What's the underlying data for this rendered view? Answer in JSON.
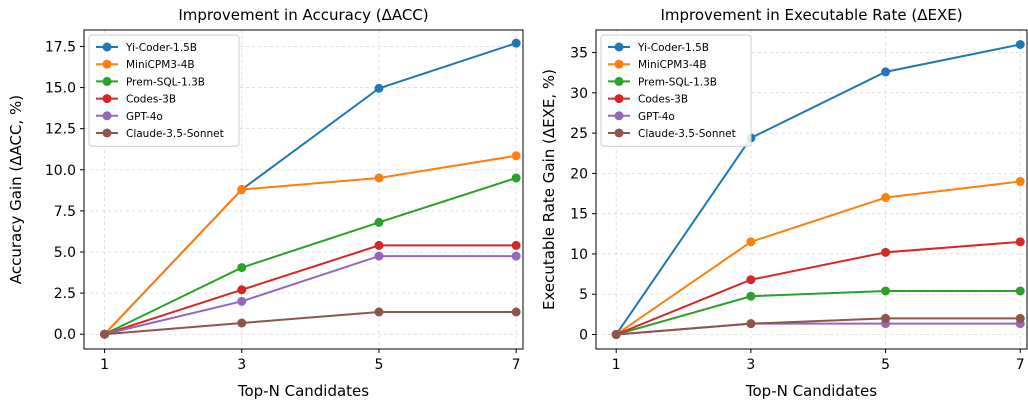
{
  "chart_data": [
    {
      "type": "line",
      "title": "Improvement in Accuracy (ΔACC)",
      "xlabel": "Top-N Candidates",
      "ylabel": "Accuracy Gain (ΔACC, %)",
      "x": [
        1,
        3,
        5,
        7
      ],
      "xticks": [
        "1",
        "3",
        "5",
        "7"
      ],
      "ylim": [
        -0.9,
        18.5
      ],
      "yticks": [
        "0.0",
        "2.5",
        "5.0",
        "7.5",
        "10.0",
        "12.5",
        "15.0",
        "17.5"
      ],
      "ytick_values": [
        0,
        2.5,
        5,
        7.5,
        10,
        12.5,
        15,
        17.5
      ],
      "grid": true,
      "legend_position": "top-left",
      "series": [
        {
          "name": "Yi-Coder-1.5B",
          "color": "#1f77b4",
          "values": [
            0,
            8.8,
            14.95,
            17.7
          ]
        },
        {
          "name": "MiniCPM3-4B",
          "color": "#ff7f0e",
          "values": [
            0,
            8.8,
            9.5,
            10.85
          ]
        },
        {
          "name": "Prem-SQL-1.3B",
          "color": "#2ca02c",
          "values": [
            0,
            4.05,
            6.8,
            9.5
          ]
        },
        {
          "name": "Codes-3B",
          "color": "#d62728",
          "values": [
            0,
            2.7,
            5.4,
            5.4
          ]
        },
        {
          "name": "GPT-4o",
          "color": "#9467bd",
          "values": [
            0,
            2.0,
            4.75,
            4.75
          ]
        },
        {
          "name": "Claude-3.5-Sonnet",
          "color": "#8c564b",
          "values": [
            0,
            0.68,
            1.35,
            1.35
          ]
        }
      ]
    },
    {
      "type": "line",
      "title": "Improvement in Executable Rate (ΔEXE)",
      "xlabel": "Top-N Candidates",
      "ylabel": "Executable Rate Gain (ΔEXE, %)",
      "x": [
        1,
        3,
        5,
        7
      ],
      "xticks": [
        "1",
        "3",
        "5",
        "7"
      ],
      "ylim": [
        -1.8,
        37.8
      ],
      "yticks": [
        "0",
        "5",
        "10",
        "15",
        "20",
        "25",
        "30",
        "35"
      ],
      "ytick_values": [
        0,
        5,
        10,
        15,
        20,
        25,
        30,
        35
      ],
      "grid": true,
      "legend_position": "top-left",
      "series": [
        {
          "name": "Yi-Coder-1.5B",
          "color": "#1f77b4",
          "values": [
            0,
            24.4,
            32.6,
            36.0
          ]
        },
        {
          "name": "MiniCPM3-4B",
          "color": "#ff7f0e",
          "values": [
            0,
            11.5,
            17.0,
            19.0
          ]
        },
        {
          "name": "Prem-SQL-1.3B",
          "color": "#2ca02c",
          "values": [
            0,
            4.75,
            5.4,
            5.4
          ]
        },
        {
          "name": "Codes-3B",
          "color": "#d62728",
          "values": [
            0,
            6.8,
            10.2,
            11.5
          ]
        },
        {
          "name": "GPT-4o",
          "color": "#9467bd",
          "values": [
            0,
            1.35,
            1.35,
            1.35
          ]
        },
        {
          "name": "Claude-3.5-Sonnet",
          "color": "#8c564b",
          "values": [
            0,
            1.35,
            2.0,
            2.0
          ]
        }
      ]
    }
  ]
}
